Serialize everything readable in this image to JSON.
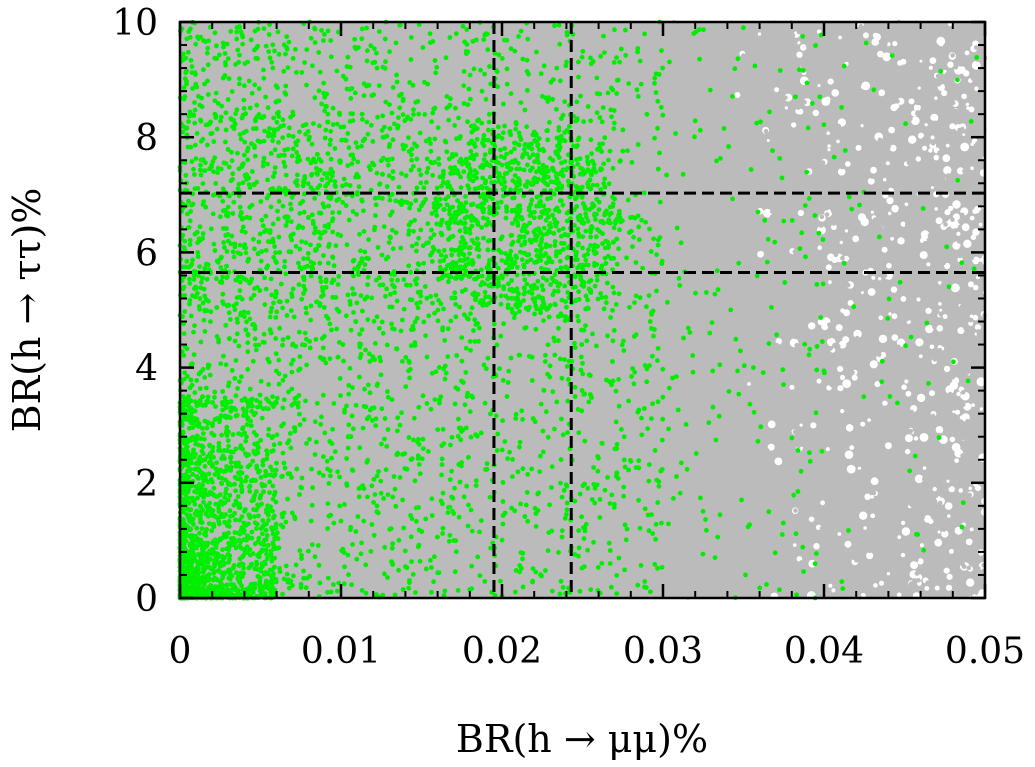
{
  "chart_data": {
    "type": "scatter",
    "title": "",
    "xlabel": "BR(h → μμ)%",
    "ylabel": "BR(h → ττ)%",
    "xlim": [
      0,
      0.05
    ],
    "ylim": [
      0,
      10
    ],
    "x_ticks": [
      0,
      0.01,
      0.02,
      0.03,
      0.04,
      0.05
    ],
    "x_tick_labels": [
      "0",
      "0.01",
      "0.02",
      "0.03",
      "0.04",
      "0.05"
    ],
    "y_ticks": [
      0,
      2,
      4,
      6,
      8,
      10
    ],
    "y_tick_labels": [
      "0",
      "2",
      "4",
      "6",
      "8",
      "10"
    ],
    "grid": false,
    "legend": "none",
    "series": [
      {
        "color": "#bbbbbb",
        "description_points": "dense grey cloud of parameter-space points covering the full plotted range",
        "density_note": "uniformly dense for x < 0.035, sparser with white gaps for x > 0.035"
      },
      {
        "color": "#00ee00",
        "cluster_points": [
          {
            "x": 0.001,
            "y": 0.3
          },
          {
            "x": 0.002,
            "y": 0.5
          },
          {
            "x": 0.0005,
            "y": 0.8
          },
          {
            "x": 0.022,
            "y": 6.6
          },
          {
            "x": 0.021,
            "y": 6.8
          },
          {
            "x": 0.023,
            "y": 6.5
          }
        ]
      }
    ],
    "reference_lines": {
      "vertical": [
        0.0195,
        0.0243
      ],
      "horizontal": [
        5.65,
        7.03
      ],
      "style": "dashed",
      "color": "#000000"
    }
  }
}
